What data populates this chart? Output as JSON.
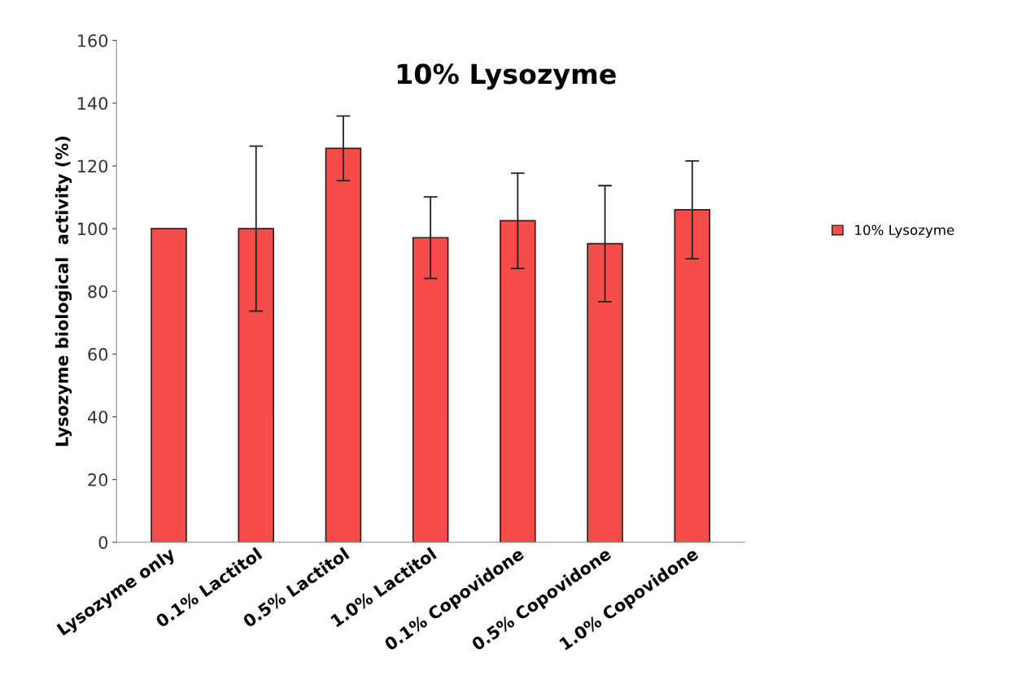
{
  "chart_data": {
    "type": "bar",
    "title": "10% Lysozyme",
    "ylabel": "Lysozyme biological  activity (%)",
    "categories": [
      "Lysozyme only",
      "0.1% Lactitol",
      "0.5% Lactitol",
      "1.0% Lactitol",
      "0.1% Copovidone",
      "0.5% Copovidone",
      "1.0% Copovidone"
    ],
    "series": [
      {
        "name": "10% Lysozyme",
        "color": "#f64c4c",
        "values": [
          100,
          100,
          125.6,
          97.1,
          102.5,
          95.2,
          106
        ],
        "errors": [
          null,
          26.3,
          10.3,
          13,
          15.2,
          18.5,
          15.6
        ]
      }
    ],
    "ylim": [
      0,
      160
    ],
    "yticks": [
      0,
      20,
      40,
      60,
      80,
      100,
      120,
      140,
      160
    ],
    "grid": false,
    "legend": "right"
  }
}
